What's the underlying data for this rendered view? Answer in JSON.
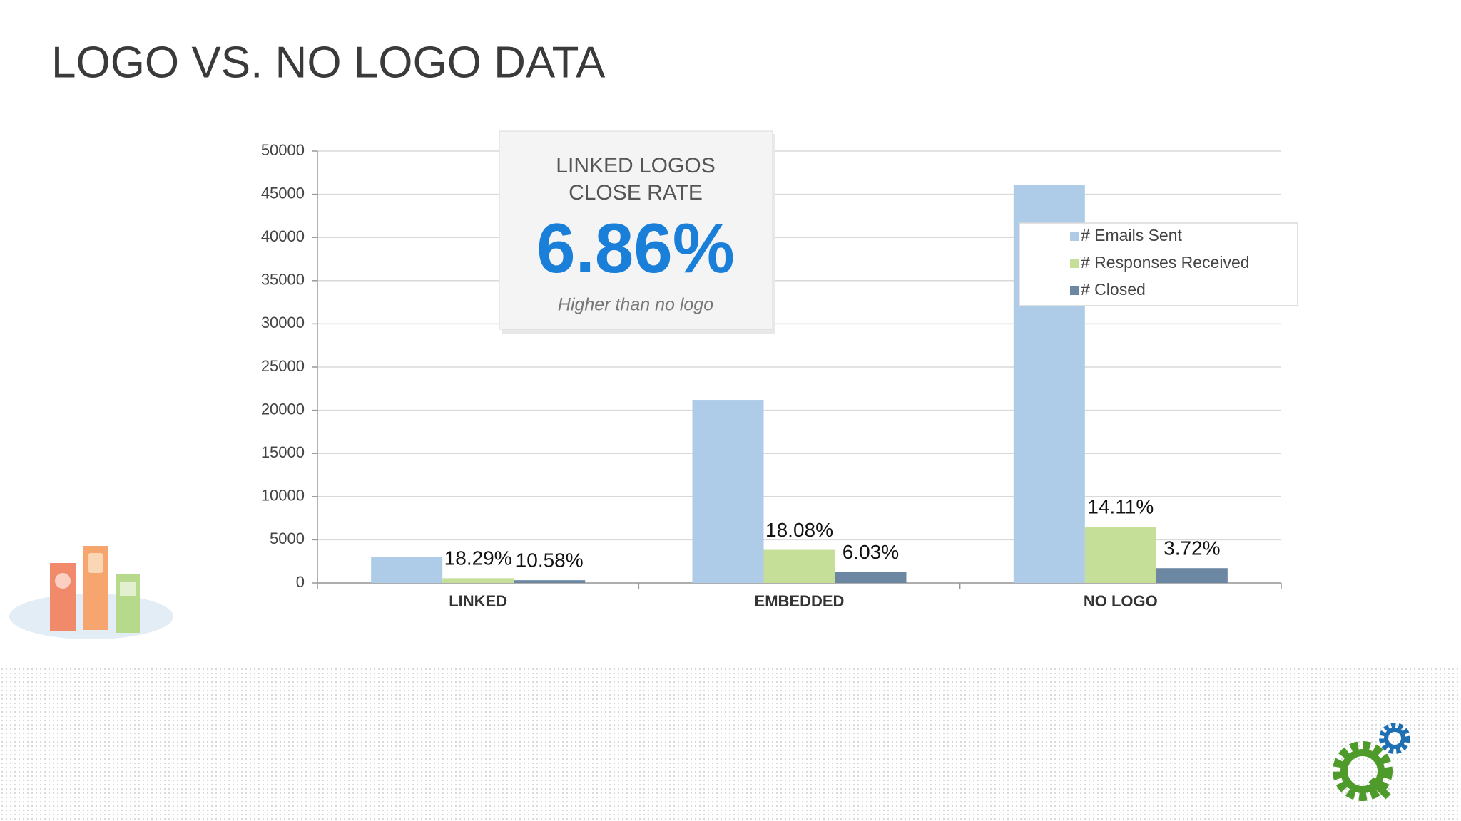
{
  "chart_data": {
    "type": "bar",
    "title": "LOGO VS. NO LOGO DATA",
    "categories": [
      "LINKED",
      "EMBEDDED",
      "NO LOGO"
    ],
    "series": [
      {
        "name": "# Emails Sent",
        "color": "#aecbe8",
        "values": [
          3000,
          21200,
          46100
        ]
      },
      {
        "name": "# Responses Received",
        "color": "#c5df99",
        "values": [
          549,
          3833,
          6505
        ],
        "data_labels": [
          "18.29%",
          "18.08%",
          "14.11%"
        ]
      },
      {
        "name": "# Closed",
        "color": "#6c87a1",
        "values": [
          317,
          1278,
          1715
        ],
        "data_labels": [
          "10.58%",
          "6.03%",
          "3.72%"
        ]
      }
    ],
    "ylim": [
      0,
      50000
    ],
    "yticks": [
      0,
      5000,
      10000,
      15000,
      20000,
      25000,
      30000,
      35000,
      40000,
      45000,
      50000
    ],
    "grid": true,
    "legend": "upper-right",
    "callout": {
      "heading": [
        "LINKED LOGOS",
        "CLOSE RATE"
      ],
      "value": "6.86%",
      "note": "Higher than no logo"
    }
  }
}
